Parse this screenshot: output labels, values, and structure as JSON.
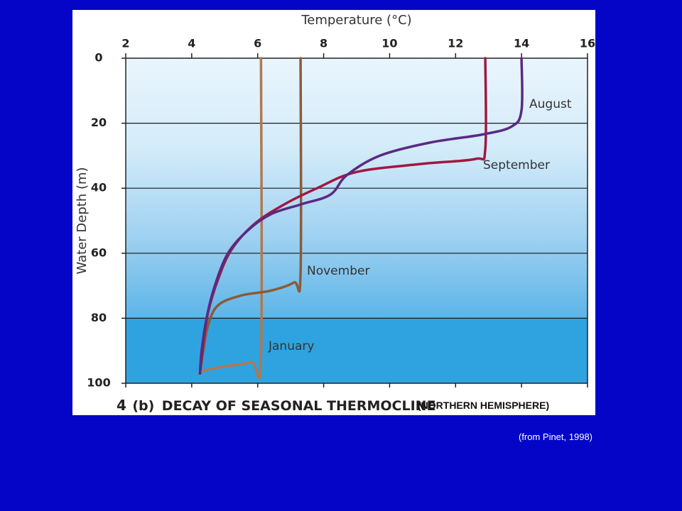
{
  "chart_data": {
    "type": "line",
    "title": "DECAY OF SEASONAL THERMOCLINE",
    "figure_number": "4",
    "figure_part": "(b)",
    "note": "(NORTHERN HEMISPHERE)",
    "xlabel": "Temperature (°C)",
    "ylabel": "Water Depth (m)",
    "xlim": [
      2,
      16
    ],
    "ylim": [
      0,
      100
    ],
    "y_inverted": true,
    "x_axis_position": "top",
    "x_ticks": [
      2,
      4,
      6,
      8,
      10,
      12,
      14,
      16
    ],
    "y_ticks": [
      0,
      20,
      40,
      60,
      80,
      100
    ],
    "grid": "horizontal",
    "series": [
      {
        "name": "August",
        "color": "#5a2a84",
        "points": [
          [
            14.0,
            0
          ],
          [
            14.0,
            16
          ],
          [
            13.7,
            21
          ],
          [
            12.8,
            23.5
          ],
          [
            11.2,
            26
          ],
          [
            9.7,
            30
          ],
          [
            8.7,
            36
          ],
          [
            8.2,
            42
          ],
          [
            7.3,
            45
          ],
          [
            6.4,
            48
          ],
          [
            5.7,
            53
          ],
          [
            5.1,
            60
          ],
          [
            4.7,
            70
          ],
          [
            4.45,
            80
          ],
          [
            4.3,
            90
          ],
          [
            4.25,
            97
          ]
        ]
      },
      {
        "name": "September",
        "color": "#a01840",
        "points": [
          [
            12.9,
            0
          ],
          [
            12.9,
            28
          ],
          [
            12.6,
            31
          ],
          [
            11.0,
            32.5
          ],
          [
            9.0,
            35
          ],
          [
            7.8,
            40
          ],
          [
            6.8,
            45
          ],
          [
            5.9,
            51
          ],
          [
            5.2,
            59
          ],
          [
            4.8,
            68
          ],
          [
            4.5,
            78
          ],
          [
            4.35,
            88
          ],
          [
            4.25,
            97
          ]
        ]
      },
      {
        "name": "November",
        "color": "#8c5a3a",
        "points": [
          [
            7.3,
            0
          ],
          [
            7.3,
            66
          ],
          [
            7.1,
            69
          ],
          [
            6.4,
            71.5
          ],
          [
            5.5,
            73
          ],
          [
            4.8,
            76
          ],
          [
            4.5,
            82
          ],
          [
            4.35,
            90
          ],
          [
            4.25,
            97
          ]
        ]
      },
      {
        "name": "January",
        "color": "#b07850",
        "points": [
          [
            6.1,
            0
          ],
          [
            6.1,
            91
          ],
          [
            5.8,
            93.5
          ],
          [
            4.9,
            95
          ],
          [
            4.4,
            96
          ],
          [
            4.25,
            97
          ]
        ]
      }
    ]
  },
  "source_note": "(from Pinet, 1998)"
}
